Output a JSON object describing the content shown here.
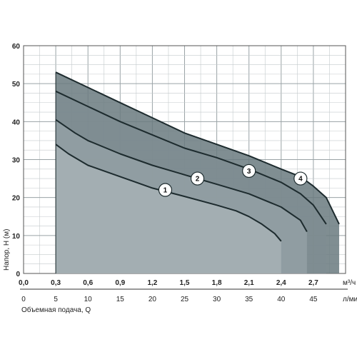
{
  "chart_data": {
    "type": "area",
    "title": "",
    "ylabel": "Напор, Н (м)",
    "xlabel": "Объемная подача, Q",
    "x_unit_primary": "м³/ч",
    "x_unit_secondary": "л/мин",
    "ylim": [
      0,
      60
    ],
    "xlim": [
      0,
      50
    ],
    "grid": true,
    "y_ticks": [
      "0",
      "10",
      "20",
      "30",
      "40",
      "50",
      "60"
    ],
    "x_ticks_m3h": [
      "0,0",
      "0,3",
      "0,6",
      "0,9",
      "1,2",
      "1,5",
      "1,8",
      "2,1",
      "2,4",
      "2,7"
    ],
    "x_ticks_lmin": [
      "0",
      "5",
      "10",
      "15",
      "20",
      "25",
      "30",
      "35",
      "40",
      "45"
    ],
    "series": [
      {
        "name": "1",
        "x_lmin": [
          5,
          7,
          10,
          15,
          20,
          25,
          30,
          33,
          35,
          37,
          39,
          40
        ],
        "y": [
          34,
          31.5,
          28.5,
          25.5,
          22.5,
          20.3,
          18,
          16.5,
          15,
          13,
          10.5,
          8.5
        ],
        "label_pos": [
          22,
          22
        ],
        "color": "#a7b2b5"
      },
      {
        "name": "2",
        "x_lmin": [
          5,
          8,
          10,
          15,
          20,
          25,
          30,
          35,
          40,
          43,
          44
        ],
        "y": [
          40.5,
          37,
          35,
          31.5,
          28.5,
          26,
          23.5,
          21,
          17.5,
          14,
          11
        ],
        "label_pos": [
          27,
          25
        ],
        "color": "#93a0a4"
      },
      {
        "name": "3",
        "x_lmin": [
          5,
          10,
          15,
          20,
          25,
          30,
          35,
          40,
          43,
          45,
          47
        ],
        "y": [
          48,
          44,
          40,
          36.5,
          33,
          30.5,
          27.5,
          24,
          21,
          18,
          13
        ],
        "label_pos": [
          35,
          27
        ],
        "color": "#7f8d92"
      },
      {
        "name": "4",
        "x_lmin": [
          5,
          10,
          15,
          20,
          25,
          30,
          35,
          40,
          43,
          45,
          47,
          49
        ],
        "y": [
          53,
          49,
          45,
          41,
          37,
          34,
          31,
          27.5,
          25.5,
          23,
          20,
          13
        ],
        "label_pos": [
          43,
          25
        ],
        "color": "#6a7a7f"
      }
    ],
    "x_start_lmin": 5
  }
}
